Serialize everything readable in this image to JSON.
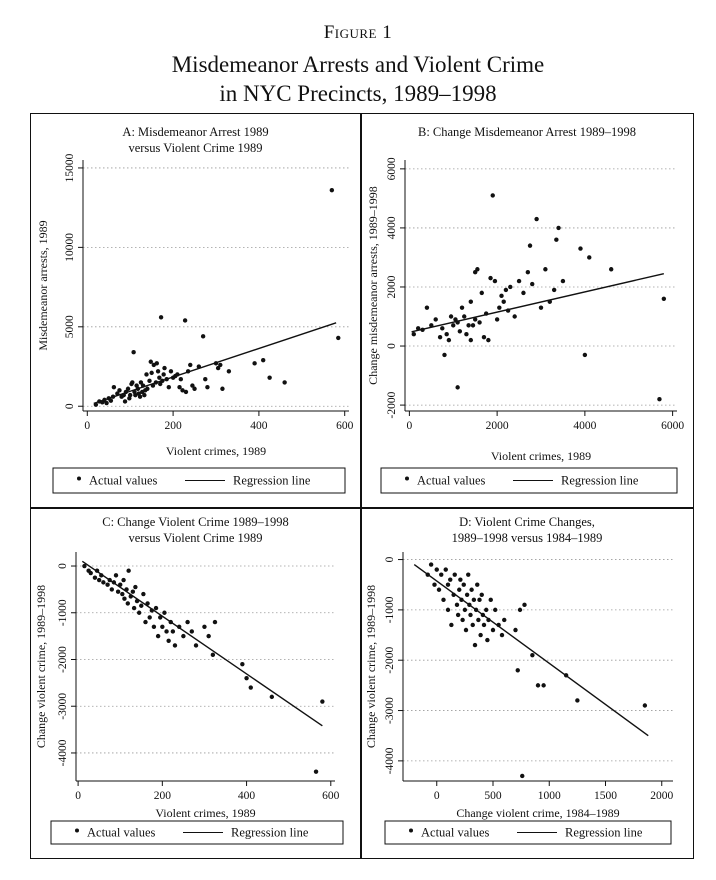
{
  "figure": {
    "label": "Figure 1",
    "title_line1": "Misdemeanor Arrests and Violent Crime",
    "title_line2": "in NYC Precincts, 1989–1998"
  },
  "legend": {
    "points_label": "Actual values",
    "line_label": "Regression line"
  },
  "colors": {
    "ink": "#111111",
    "grid": "#9a9a9a",
    "background": "#ffffff"
  },
  "chart_data": [
    {
      "id": "A",
      "type": "scatter",
      "title_lines": [
        "A: Misdemeanor Arrest 1989",
        "versus Violent Crime 1989"
      ],
      "xlabel": "Violent crimes, 1989",
      "ylabel": "Misdemeanor arrests, 1989",
      "xlim": [
        -10,
        610
      ],
      "ylim": [
        -300,
        15500
      ],
      "xticks": [
        0,
        200,
        400,
        600
      ],
      "yticks": [
        0,
        5000,
        10000,
        15000
      ],
      "grid": "dotted-horizontal",
      "legend_position": "bottom",
      "regression": {
        "x": [
          15,
          580
        ],
        "y": [
          180,
          5250
        ]
      },
      "points": [
        [
          20,
          100
        ],
        [
          28,
          300
        ],
        [
          35,
          250
        ],
        [
          40,
          400
        ],
        [
          45,
          200
        ],
        [
          50,
          500
        ],
        [
          55,
          350
        ],
        [
          60,
          600
        ],
        [
          62,
          1200
        ],
        [
          70,
          800
        ],
        [
          75,
          1000
        ],
        [
          80,
          600
        ],
        [
          85,
          700
        ],
        [
          88,
          300
        ],
        [
          90,
          900
        ],
        [
          95,
          1100
        ],
        [
          98,
          500
        ],
        [
          100,
          700
        ],
        [
          103,
          1400
        ],
        [
          105,
          1500
        ],
        [
          108,
          3400
        ],
        [
          110,
          900
        ],
        [
          112,
          700
        ],
        [
          115,
          1300
        ],
        [
          118,
          1100
        ],
        [
          120,
          800
        ],
        [
          123,
          600
        ],
        [
          125,
          1500
        ],
        [
          128,
          900
        ],
        [
          130,
          1300
        ],
        [
          133,
          700
        ],
        [
          135,
          1000
        ],
        [
          138,
          2000
        ],
        [
          140,
          1100
        ],
        [
          145,
          1600
        ],
        [
          148,
          2800
        ],
        [
          150,
          2100
        ],
        [
          153,
          1300
        ],
        [
          155,
          2600
        ],
        [
          160,
          1500
        ],
        [
          162,
          2700
        ],
        [
          165,
          2200
        ],
        [
          168,
          1800
        ],
        [
          170,
          1400
        ],
        [
          172,
          5600
        ],
        [
          175,
          1600
        ],
        [
          178,
          2000
        ],
        [
          180,
          2400
        ],
        [
          185,
          1700
        ],
        [
          190,
          1200
        ],
        [
          195,
          2200
        ],
        [
          200,
          1800
        ],
        [
          205,
          1900
        ],
        [
          210,
          2000
        ],
        [
          215,
          1200
        ],
        [
          218,
          1700
        ],
        [
          222,
          1000
        ],
        [
          228,
          5400
        ],
        [
          230,
          900
        ],
        [
          235,
          2200
        ],
        [
          240,
          2600
        ],
        [
          245,
          1300
        ],
        [
          250,
          1100
        ],
        [
          260,
          2500
        ],
        [
          270,
          4400
        ],
        [
          275,
          1700
        ],
        [
          280,
          1200
        ],
        [
          300,
          2700
        ],
        [
          305,
          2400
        ],
        [
          310,
          2600
        ],
        [
          315,
          1100
        ],
        [
          330,
          2200
        ],
        [
          390,
          2700
        ],
        [
          410,
          2900
        ],
        [
          425,
          1800
        ],
        [
          460,
          1500
        ],
        [
          570,
          13600
        ],
        [
          585,
          4300
        ]
      ]
    },
    {
      "id": "B",
      "type": "scatter",
      "title_lines": [
        "B: Change Misdemeanor Arrest 1989–1998"
      ],
      "xlabel": "Violent crimes, 1989",
      "ylabel": "Change misdemeanor arrests, 1989–1998",
      "xlim": [
        -100,
        6100
      ],
      "ylim": [
        -2200,
        6300
      ],
      "xticks": [
        0,
        2000,
        4000,
        6000
      ],
      "yticks": [
        -2000,
        0,
        2000,
        4000,
        6000
      ],
      "grid": "dotted-horizontal",
      "legend_position": "bottom",
      "regression": {
        "x": [
          50,
          5800
        ],
        "y": [
          480,
          2450
        ]
      },
      "points": [
        [
          100,
          400
        ],
        [
          200,
          600
        ],
        [
          300,
          550
        ],
        [
          400,
          1300
        ],
        [
          500,
          700
        ],
        [
          600,
          900
        ],
        [
          700,
          300
        ],
        [
          750,
          600
        ],
        [
          800,
          -300
        ],
        [
          850,
          400
        ],
        [
          900,
          200
        ],
        [
          950,
          1000
        ],
        [
          1000,
          700
        ],
        [
          1050,
          900
        ],
        [
          1100,
          -1400
        ],
        [
          1100,
          800
        ],
        [
          1150,
          500
        ],
        [
          1200,
          1300
        ],
        [
          1250,
          1000
        ],
        [
          1300,
          400
        ],
        [
          1350,
          700
        ],
        [
          1400,
          200
        ],
        [
          1400,
          1500
        ],
        [
          1450,
          700
        ],
        [
          1500,
          900
        ],
        [
          1500,
          2500
        ],
        [
          1550,
          2600
        ],
        [
          1600,
          800
        ],
        [
          1650,
          1800
        ],
        [
          1700,
          300
        ],
        [
          1750,
          1100
        ],
        [
          1800,
          200
        ],
        [
          1850,
          2300
        ],
        [
          1900,
          5100
        ],
        [
          1950,
          2200
        ],
        [
          2000,
          900
        ],
        [
          2050,
          1300
        ],
        [
          2100,
          1700
        ],
        [
          2150,
          1500
        ],
        [
          2200,
          1900
        ],
        [
          2250,
          1200
        ],
        [
          2300,
          2000
        ],
        [
          2400,
          1000
        ],
        [
          2500,
          2200
        ],
        [
          2600,
          1800
        ],
        [
          2700,
          2500
        ],
        [
          2750,
          3400
        ],
        [
          2800,
          2100
        ],
        [
          2900,
          4300
        ],
        [
          3000,
          1300
        ],
        [
          3100,
          2600
        ],
        [
          3200,
          1500
        ],
        [
          3300,
          1900
        ],
        [
          3350,
          3600
        ],
        [
          3400,
          4000
        ],
        [
          3500,
          2200
        ],
        [
          3900,
          3300
        ],
        [
          4000,
          -300
        ],
        [
          4100,
          3000
        ],
        [
          4600,
          2600
        ],
        [
          5700,
          -1800
        ],
        [
          5800,
          1600
        ]
      ]
    },
    {
      "id": "C",
      "type": "scatter",
      "title_lines": [
        "C: Change Violent Crime 1989–1998",
        "versus Violent Crime 1989"
      ],
      "xlabel": "Violent crimes, 1989",
      "ylabel": "Change violent crime, 1989–1998",
      "xlim": [
        -5,
        610
      ],
      "ylim": [
        -4600,
        300
      ],
      "xticks": [
        0,
        200,
        400,
        600
      ],
      "yticks": [
        -4000,
        -3000,
        -2000,
        -1000,
        0
      ],
      "grid": "dotted-horizontal",
      "legend_position": "bottom",
      "regression": {
        "x": [
          10,
          580
        ],
        "y": [
          100,
          -3420
        ]
      },
      "points": [
        [
          15,
          0
        ],
        [
          25,
          -100
        ],
        [
          30,
          -150
        ],
        [
          40,
          -250
        ],
        [
          45,
          -100
        ],
        [
          50,
          -300
        ],
        [
          55,
          -200
        ],
        [
          60,
          -350
        ],
        [
          70,
          -400
        ],
        [
          75,
          -300
        ],
        [
          80,
          -500
        ],
        [
          85,
          -350
        ],
        [
          90,
          -200
        ],
        [
          95,
          -550
        ],
        [
          100,
          -400
        ],
        [
          105,
          -600
        ],
        [
          108,
          -300
        ],
        [
          110,
          -700
        ],
        [
          115,
          -500
        ],
        [
          118,
          -800
        ],
        [
          120,
          -100
        ],
        [
          125,
          -650
        ],
        [
          130,
          -550
        ],
        [
          133,
          -900
        ],
        [
          136,
          -450
        ],
        [
          140,
          -750
        ],
        [
          145,
          -1000
        ],
        [
          150,
          -850
        ],
        [
          155,
          -600
        ],
        [
          160,
          -1200
        ],
        [
          165,
          -800
        ],
        [
          170,
          -1100
        ],
        [
          175,
          -950
        ],
        [
          180,
          -1300
        ],
        [
          185,
          -900
        ],
        [
          190,
          -1500
        ],
        [
          195,
          -1100
        ],
        [
          200,
          -1300
        ],
        [
          205,
          -1000
        ],
        [
          210,
          -1400
        ],
        [
          215,
          -1600
        ],
        [
          220,
          -1200
        ],
        [
          225,
          -1400
        ],
        [
          230,
          -1700
        ],
        [
          240,
          -1300
        ],
        [
          250,
          -1500
        ],
        [
          260,
          -1200
        ],
        [
          270,
          -1400
        ],
        [
          280,
          -1700
        ],
        [
          300,
          -1300
        ],
        [
          310,
          -1500
        ],
        [
          320,
          -1900
        ],
        [
          325,
          -1200
        ],
        [
          390,
          -2100
        ],
        [
          400,
          -2400
        ],
        [
          410,
          -2600
        ],
        [
          460,
          -2800
        ],
        [
          565,
          -4400
        ],
        [
          580,
          -2900
        ]
      ]
    },
    {
      "id": "D",
      "type": "scatter",
      "title_lines": [
        "D: Violent Crime Changes,",
        "1989–1998 versus 1984–1989"
      ],
      "xlabel": "Change violent crime, 1984–1989",
      "ylabel": "Change violent crime, 1989–1998",
      "xlim": [
        -300,
        2100
      ],
      "ylim": [
        -4400,
        150
      ],
      "xticks": [
        0,
        500,
        1000,
        1500,
        2000
      ],
      "yticks": [
        -4000,
        -3000,
        -2000,
        -1000,
        0
      ],
      "grid": "dotted-horizontal",
      "legend_position": "bottom",
      "regression": {
        "x": [
          -200,
          1880
        ],
        "y": [
          -100,
          -3500
        ]
      },
      "points": [
        [
          -80,
          -300
        ],
        [
          -50,
          -100
        ],
        [
          -20,
          -500
        ],
        [
          0,
          -200
        ],
        [
          20,
          -600
        ],
        [
          40,
          -300
        ],
        [
          60,
          -800
        ],
        [
          80,
          -200
        ],
        [
          100,
          -1000
        ],
        [
          100,
          -500
        ],
        [
          120,
          -400
        ],
        [
          130,
          -1300
        ],
        [
          150,
          -700
        ],
        [
          160,
          -300
        ],
        [
          180,
          -900
        ],
        [
          190,
          -1100
        ],
        [
          200,
          -600
        ],
        [
          210,
          -400
        ],
        [
          220,
          -800
        ],
        [
          230,
          -1200
        ],
        [
          240,
          -500
        ],
        [
          250,
          -1000
        ],
        [
          260,
          -1400
        ],
        [
          270,
          -700
        ],
        [
          280,
          -300
        ],
        [
          290,
          -900
        ],
        [
          300,
          -1100
        ],
        [
          310,
          -600
        ],
        [
          320,
          -1300
        ],
        [
          330,
          -800
        ],
        [
          340,
          -1700
        ],
        [
          350,
          -1000
        ],
        [
          360,
          -500
        ],
        [
          370,
          -1200
        ],
        [
          380,
          -800
        ],
        [
          390,
          -1500
        ],
        [
          400,
          -700
        ],
        [
          410,
          -1100
        ],
        [
          420,
          -1300
        ],
        [
          440,
          -1000
        ],
        [
          450,
          -1600
        ],
        [
          460,
          -1200
        ],
        [
          480,
          -800
        ],
        [
          500,
          -1400
        ],
        [
          520,
          -1000
        ],
        [
          550,
          -1300
        ],
        [
          580,
          -1500
        ],
        [
          600,
          -1200
        ],
        [
          700,
          -1400
        ],
        [
          720,
          -2200
        ],
        [
          740,
          -1000
        ],
        [
          760,
          -4300
        ],
        [
          780,
          -900
        ],
        [
          850,
          -1900
        ],
        [
          900,
          -2500
        ],
        [
          950,
          -2500
        ],
        [
          1150,
          -2300
        ],
        [
          1250,
          -2800
        ],
        [
          1850,
          -2900
        ]
      ]
    }
  ]
}
